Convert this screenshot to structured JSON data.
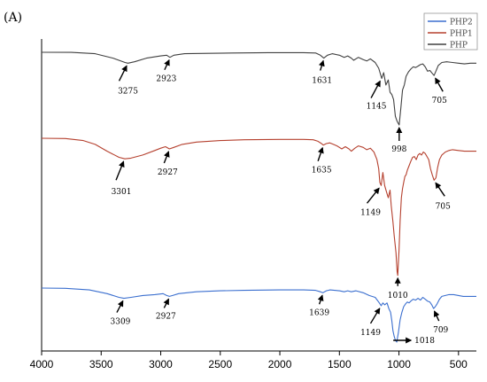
{
  "panel_label": "(A)",
  "chart_data": {
    "type": "line",
    "title": "",
    "xlabel": "",
    "ylabel": "",
    "x_reversed": true,
    "xlim": [
      4000,
      350
    ],
    "x_ticks": [
      4000,
      3500,
      3000,
      2500,
      2000,
      1500,
      1000,
      500
    ],
    "y_ticks_shown": false,
    "grid": false,
    "legend_position": "top-right",
    "legend": [
      "PHP2",
      "PHP1",
      "PHP"
    ],
    "series": [
      {
        "name": "PHP",
        "color": "#404040",
        "baseline": 0.85,
        "depth_scale": 1.0,
        "points": [
          [
            4000,
            0
          ],
          [
            3750,
            0.1
          ],
          [
            3550,
            2
          ],
          [
            3400,
            8
          ],
          [
            3300,
            14
          ],
          [
            3275,
            15
          ],
          [
            3220,
            13
          ],
          [
            3120,
            8
          ],
          [
            3000,
            5
          ],
          [
            2950,
            4
          ],
          [
            2923,
            7
          ],
          [
            2890,
            4
          ],
          [
            2800,
            2
          ],
          [
            2600,
            1.5
          ],
          [
            2400,
            1
          ],
          [
            2100,
            0.5
          ],
          [
            1800,
            0.5
          ],
          [
            1700,
            1
          ],
          [
            1660,
            4
          ],
          [
            1631,
            8
          ],
          [
            1600,
            4
          ],
          [
            1560,
            2
          ],
          [
            1500,
            4
          ],
          [
            1460,
            7
          ],
          [
            1430,
            5
          ],
          [
            1400,
            8
          ],
          [
            1380,
            11
          ],
          [
            1340,
            7
          ],
          [
            1300,
            10
          ],
          [
            1270,
            12
          ],
          [
            1240,
            9
          ],
          [
            1200,
            14
          ],
          [
            1170,
            22
          ],
          [
            1145,
            36
          ],
          [
            1128,
            28
          ],
          [
            1110,
            45
          ],
          [
            1090,
            38
          ],
          [
            1075,
            55
          ],
          [
            1060,
            58
          ],
          [
            1045,
            65
          ],
          [
            1030,
            88
          ],
          [
            1015,
            95
          ],
          [
            998,
            100
          ],
          [
            985,
            78
          ],
          [
            970,
            52
          ],
          [
            955,
            45
          ],
          [
            940,
            33
          ],
          [
            920,
            27
          ],
          [
            900,
            23
          ],
          [
            880,
            20
          ],
          [
            860,
            21
          ],
          [
            840,
            19
          ],
          [
            820,
            17
          ],
          [
            800,
            16
          ],
          [
            780,
            20
          ],
          [
            760,
            26
          ],
          [
            740,
            25
          ],
          [
            720,
            29
          ],
          [
            705,
            32
          ],
          [
            690,
            26
          ],
          [
            670,
            18
          ],
          [
            640,
            14
          ],
          [
            600,
            13
          ],
          [
            550,
            14
          ],
          [
            500,
            15
          ],
          [
            450,
            16
          ],
          [
            400,
            15
          ],
          [
            350,
            15
          ]
        ]
      },
      {
        "name": "PHP1",
        "color": "#b5402e",
        "baseline": 0.85,
        "depth_scale": 1.0,
        "points": [
          [
            4000,
            0
          ],
          [
            3800,
            0.3
          ],
          [
            3650,
            3
          ],
          [
            3550,
            8
          ],
          [
            3450,
            17
          ],
          [
            3350,
            25
          ],
          [
            3301,
            27
          ],
          [
            3250,
            26
          ],
          [
            3150,
            22
          ],
          [
            3050,
            16
          ],
          [
            3000,
            13
          ],
          [
            2960,
            11
          ],
          [
            2927,
            14
          ],
          [
            2890,
            12
          ],
          [
            2820,
            8
          ],
          [
            2700,
            5
          ],
          [
            2500,
            3
          ],
          [
            2300,
            2
          ],
          [
            2000,
            1.5
          ],
          [
            1800,
            1.5
          ],
          [
            1720,
            2
          ],
          [
            1680,
            4
          ],
          [
            1650,
            7
          ],
          [
            1635,
            9
          ],
          [
            1610,
            7
          ],
          [
            1580,
            6
          ],
          [
            1550,
            8
          ],
          [
            1520,
            10
          ],
          [
            1480,
            14
          ],
          [
            1450,
            11
          ],
          [
            1420,
            14
          ],
          [
            1400,
            17
          ],
          [
            1370,
            13
          ],
          [
            1340,
            10
          ],
          [
            1300,
            12
          ],
          [
            1270,
            15
          ],
          [
            1240,
            13
          ],
          [
            1210,
            18
          ],
          [
            1185,
            28
          ],
          [
            1170,
            40
          ],
          [
            1160,
            58
          ],
          [
            1149,
            62
          ],
          [
            1135,
            45
          ],
          [
            1120,
            62
          ],
          [
            1105,
            70
          ],
          [
            1090,
            78
          ],
          [
            1075,
            68
          ],
          [
            1065,
            88
          ],
          [
            1050,
            110
          ],
          [
            1040,
            128
          ],
          [
            1025,
            150
          ],
          [
            1015,
            175
          ],
          [
            1010,
            180
          ],
          [
            1000,
            148
          ],
          [
            990,
            108
          ],
          [
            980,
            78
          ],
          [
            970,
            66
          ],
          [
            960,
            58
          ],
          [
            950,
            50
          ],
          [
            940,
            48
          ],
          [
            930,
            42
          ],
          [
            915,
            36
          ],
          [
            900,
            30
          ],
          [
            885,
            25
          ],
          [
            870,
            24
          ],
          [
            855,
            28
          ],
          [
            840,
            22
          ],
          [
            825,
            20
          ],
          [
            810,
            22
          ],
          [
            795,
            18
          ],
          [
            780,
            20
          ],
          [
            765,
            24
          ],
          [
            750,
            28
          ],
          [
            735,
            40
          ],
          [
            720,
            48
          ],
          [
            705,
            55
          ],
          [
            690,
            52
          ],
          [
            675,
            38
          ],
          [
            660,
            28
          ],
          [
            640,
            22
          ],
          [
            610,
            18
          ],
          [
            580,
            16
          ],
          [
            550,
            15
          ],
          [
            500,
            16
          ],
          [
            450,
            17
          ],
          [
            400,
            17
          ],
          [
            350,
            17
          ]
        ]
      },
      {
        "name": "PHP2",
        "color": "#3b6fcf",
        "baseline": 0.85,
        "depth_scale": 1.0,
        "points": [
          [
            4000,
            0
          ],
          [
            3800,
            0.3
          ],
          [
            3600,
            2
          ],
          [
            3450,
            6
          ],
          [
            3350,
            10
          ],
          [
            3309,
            11
          ],
          [
            3250,
            10
          ],
          [
            3150,
            8
          ],
          [
            3050,
            7
          ],
          [
            2980,
            6
          ],
          [
            2950,
            8
          ],
          [
            2927,
            9
          ],
          [
            2900,
            8
          ],
          [
            2850,
            6
          ],
          [
            2700,
            4
          ],
          [
            2500,
            3
          ],
          [
            2300,
            2.5
          ],
          [
            2000,
            2
          ],
          [
            1800,
            2
          ],
          [
            1700,
            2.5
          ],
          [
            1660,
            4
          ],
          [
            1639,
            5
          ],
          [
            1610,
            3
          ],
          [
            1580,
            2
          ],
          [
            1500,
            3
          ],
          [
            1460,
            4
          ],
          [
            1430,
            3
          ],
          [
            1400,
            4
          ],
          [
            1360,
            3
          ],
          [
            1300,
            5
          ],
          [
            1250,
            8
          ],
          [
            1200,
            10
          ],
          [
            1170,
            15
          ],
          [
            1149,
            19
          ],
          [
            1135,
            16
          ],
          [
            1120,
            18
          ],
          [
            1100,
            16
          ],
          [
            1085,
            22
          ],
          [
            1070,
            26
          ],
          [
            1060,
            35
          ],
          [
            1050,
            46
          ],
          [
            1040,
            52
          ],
          [
            1030,
            56
          ],
          [
            1018,
            58
          ],
          [
            1005,
            48
          ],
          [
            990,
            34
          ],
          [
            975,
            26
          ],
          [
            960,
            20
          ],
          [
            945,
            17
          ],
          [
            930,
            15
          ],
          [
            915,
            16
          ],
          [
            900,
            14
          ],
          [
            880,
            12
          ],
          [
            860,
            13
          ],
          [
            840,
            11
          ],
          [
            820,
            13
          ],
          [
            800,
            10
          ],
          [
            780,
            12
          ],
          [
            760,
            14
          ],
          [
            740,
            15
          ],
          [
            725,
            18
          ],
          [
            709,
            22
          ],
          [
            695,
            20
          ],
          [
            680,
            17
          ],
          [
            660,
            12
          ],
          [
            640,
            9
          ],
          [
            610,
            8
          ],
          [
            580,
            7
          ],
          [
            540,
            7
          ],
          [
            500,
            8
          ],
          [
            460,
            9
          ],
          [
            420,
            9
          ],
          [
            380,
            9
          ],
          [
            350,
            9
          ]
        ]
      }
    ],
    "annotations": [
      {
        "series": "PHP",
        "label": "3275",
        "x": 3275
      },
      {
        "series": "PHP",
        "label": "2923",
        "x": 2923
      },
      {
        "series": "PHP",
        "label": "1631",
        "x": 1631
      },
      {
        "series": "PHP",
        "label": "1145",
        "x": 1145
      },
      {
        "series": "PHP",
        "label": "998",
        "x": 998
      },
      {
        "series": "PHP",
        "label": "705",
        "x": 705
      },
      {
        "series": "PHP1",
        "label": "3301",
        "x": 3301
      },
      {
        "series": "PHP1",
        "label": "2927",
        "x": 2927
      },
      {
        "series": "PHP1",
        "label": "1635",
        "x": 1635
      },
      {
        "series": "PHP1",
        "label": "1149",
        "x": 1149
      },
      {
        "series": "PHP1",
        "label": "1010",
        "x": 1010
      },
      {
        "series": "PHP1",
        "label": "705",
        "x": 705
      },
      {
        "series": "PHP2",
        "label": "3309",
        "x": 3309
      },
      {
        "series": "PHP2",
        "label": "2927",
        "x": 2927
      },
      {
        "series": "PHP2",
        "label": "1639",
        "x": 1639
      },
      {
        "series": "PHP2",
        "label": "1149",
        "x": 1149
      },
      {
        "series": "PHP2",
        "label": "1018",
        "x": 1018
      },
      {
        "series": "PHP2",
        "label": "709",
        "x": 709
      }
    ]
  }
}
